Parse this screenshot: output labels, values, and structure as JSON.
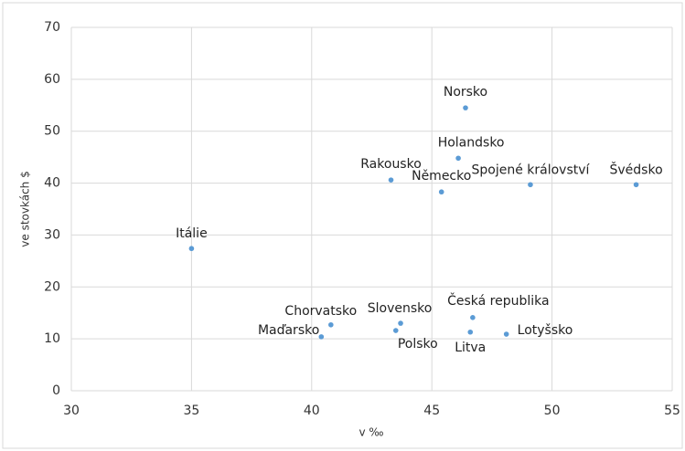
{
  "chart_data": {
    "type": "scatter",
    "x_label": "v ‰",
    "y_label": "ve stovkách $",
    "categories": [
      "Norsko",
      "Holandsko",
      "Rakousko",
      "Německo",
      "Spojené království",
      "Švédsko",
      "Itálie",
      "Chorvatsko",
      "Maďarsko",
      "Slovensko",
      "Polsko",
      "Česká republika",
      "Litva",
      "Lotyšsko"
    ],
    "x": [
      46.4,
      46.1,
      43.3,
      45.4,
      49.1,
      53.5,
      35.0,
      40.8,
      40.4,
      43.7,
      43.5,
      46.7,
      46.6,
      48.1
    ],
    "values": [
      54.5,
      44.8,
      40.6,
      38.3,
      39.7,
      39.7,
      27.4,
      12.7,
      10.4,
      13.0,
      11.6,
      14.1,
      11.3,
      10.9
    ],
    "color": "#5b9bd5",
    "xlim": [
      30,
      55
    ],
    "xticks": [
      30,
      35,
      40,
      45,
      50,
      55
    ],
    "ylim": [
      0,
      70
    ],
    "yticks": [
      0,
      10,
      20,
      30,
      40,
      50,
      60,
      70
    ],
    "grid": true
  }
}
